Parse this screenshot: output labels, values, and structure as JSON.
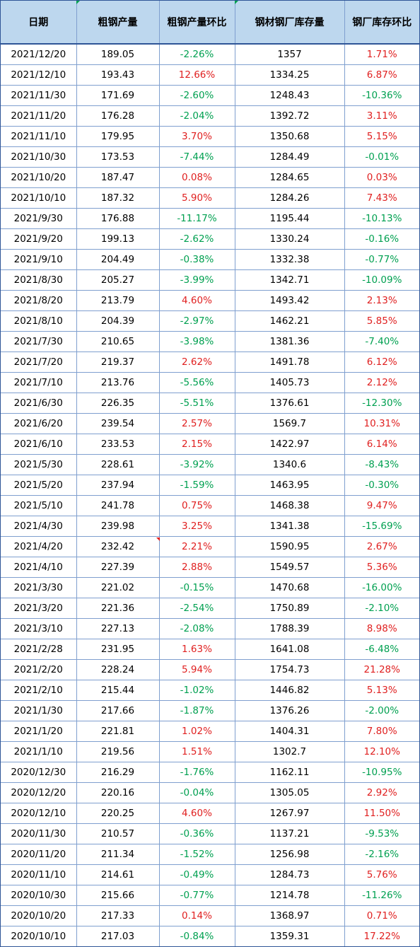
{
  "headers": [
    "日期",
    "粗钢产量",
    "粗钢产量环比",
    "钢材钢厂库存量",
    "钢厂库存环比"
  ],
  "colors": {
    "header_bg": "#bdd7ee",
    "border": "#2f5597",
    "positive": "#e02020",
    "negative": "#00a050"
  },
  "rows": [
    [
      "2021/12/20",
      "189.05",
      "-2.26%",
      "1357",
      "1.71%"
    ],
    [
      "2021/12/10",
      "193.43",
      "12.66%",
      "1334.25",
      "6.87%"
    ],
    [
      "2021/11/30",
      "171.69",
      "-2.60%",
      "1248.43",
      "-10.36%"
    ],
    [
      "2021/11/20",
      "176.28",
      "-2.04%",
      "1392.72",
      "3.11%"
    ],
    [
      "2021/11/10",
      "179.95",
      "3.70%",
      "1350.68",
      "5.15%"
    ],
    [
      "2021/10/30",
      "173.53",
      "-7.44%",
      "1284.49",
      "-0.01%"
    ],
    [
      "2021/10/20",
      "187.47",
      "0.08%",
      "1284.65",
      "0.03%"
    ],
    [
      "2021/10/10",
      "187.32",
      "5.90%",
      "1284.26",
      "7.43%"
    ],
    [
      "2021/9/30",
      "176.88",
      "-11.17%",
      "1195.44",
      "-10.13%"
    ],
    [
      "2021/9/20",
      "199.13",
      "-2.62%",
      "1330.24",
      "-0.16%"
    ],
    [
      "2021/9/10",
      "204.49",
      "-0.38%",
      "1332.38",
      "-0.77%"
    ],
    [
      "2021/8/30",
      "205.27",
      "-3.99%",
      "1342.71",
      "-10.09%"
    ],
    [
      "2021/8/20",
      "213.79",
      "4.60%",
      "1493.42",
      "2.13%"
    ],
    [
      "2021/8/10",
      "204.39",
      "-2.97%",
      "1462.21",
      "5.85%"
    ],
    [
      "2021/7/30",
      "210.65",
      "-3.98%",
      "1381.36",
      "-7.40%"
    ],
    [
      "2021/7/20",
      "219.37",
      "2.62%",
      "1491.78",
      "6.12%"
    ],
    [
      "2021/7/10",
      "213.76",
      "-5.56%",
      "1405.73",
      "2.12%"
    ],
    [
      "2021/6/30",
      "226.35",
      "-5.51%",
      "1376.61",
      "-12.30%"
    ],
    [
      "2021/6/20",
      "239.54",
      "2.57%",
      "1569.7",
      "10.31%"
    ],
    [
      "2021/6/10",
      "233.53",
      "2.15%",
      "1422.97",
      "6.14%"
    ],
    [
      "2021/5/30",
      "228.61",
      "-3.92%",
      "1340.6",
      "-8.43%"
    ],
    [
      "2021/5/20",
      "237.94",
      "-1.59%",
      "1463.95",
      "-0.30%"
    ],
    [
      "2021/5/10",
      "241.78",
      "0.75%",
      "1468.38",
      "9.47%"
    ],
    [
      "2021/4/30",
      "239.98",
      "3.25%",
      "1341.38",
      "-15.69%"
    ],
    [
      "2021/4/20",
      "232.42",
      "2.21%",
      "1590.95",
      "2.67%"
    ],
    [
      "2021/4/10",
      "227.39",
      "2.88%",
      "1549.57",
      "5.36%"
    ],
    [
      "2021/3/30",
      "221.02",
      "-0.15%",
      "1470.68",
      "-16.00%"
    ],
    [
      "2021/3/20",
      "221.36",
      "-2.54%",
      "1750.89",
      "-2.10%"
    ],
    [
      "2021/3/10",
      "227.13",
      "-2.08%",
      "1788.39",
      "8.98%"
    ],
    [
      "2021/2/28",
      "231.95",
      "1.63%",
      "1641.08",
      "-6.48%"
    ],
    [
      "2021/2/20",
      "228.24",
      "5.94%",
      "1754.73",
      "21.28%"
    ],
    [
      "2021/2/10",
      "215.44",
      "-1.02%",
      "1446.82",
      "5.13%"
    ],
    [
      "2021/1/30",
      "217.66",
      "-1.87%",
      "1376.26",
      "-2.00%"
    ],
    [
      "2021/1/20",
      "221.81",
      "1.02%",
      "1404.31",
      "7.80%"
    ],
    [
      "2021/1/10",
      "219.56",
      "1.51%",
      "1302.7",
      "12.10%"
    ],
    [
      "2020/12/30",
      "216.29",
      "-1.76%",
      "1162.11",
      "-10.95%"
    ],
    [
      "2020/12/20",
      "220.16",
      "-0.04%",
      "1305.05",
      "2.92%"
    ],
    [
      "2020/12/10",
      "220.25",
      "4.60%",
      "1267.97",
      "11.50%"
    ],
    [
      "2020/11/30",
      "210.57",
      "-0.36%",
      "1137.21",
      "-9.53%"
    ],
    [
      "2020/11/20",
      "211.34",
      "-1.52%",
      "1256.98",
      "-2.16%"
    ],
    [
      "2020/11/10",
      "214.61",
      "-0.49%",
      "1284.73",
      "5.76%"
    ],
    [
      "2020/10/30",
      "215.66",
      "-0.77%",
      "1214.78",
      "-11.26%"
    ],
    [
      "2020/10/20",
      "217.33",
      "0.14%",
      "1368.97",
      "0.71%"
    ],
    [
      "2020/10/10",
      "217.03",
      "-0.84%",
      "1359.31",
      "17.22%"
    ]
  ]
}
